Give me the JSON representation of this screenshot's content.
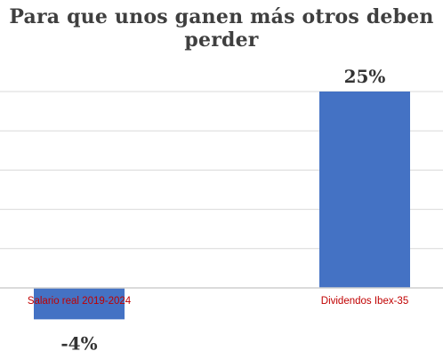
{
  "chart_data": {
    "type": "bar",
    "title": "Para que unos ganen más otros deben perder",
    "categories": [
      "Salario real 2019-2024",
      "Dividendos Ibex-35"
    ],
    "values": [
      -4,
      25
    ],
    "data_labels": [
      "-4%",
      "25%"
    ],
    "ylim": [
      -5,
      25
    ],
    "grid": true,
    "legend": "none",
    "colors": {
      "bar": "#4472c4",
      "category_label": "#c00000",
      "grid": "#d9d9d9"
    }
  }
}
